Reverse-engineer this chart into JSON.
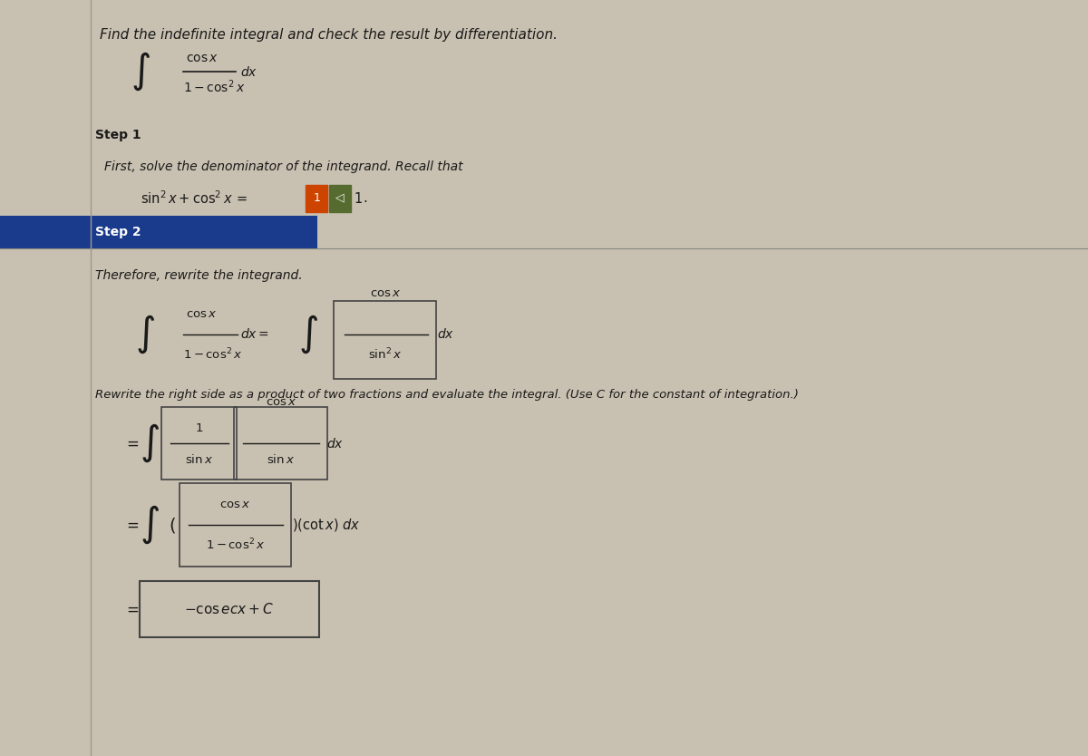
{
  "bg_color": "#c8c0b0",
  "panel_color": "#d4cdc0",
  "text_color": "#1a1a1a",
  "step2_bar_color": "#1a3a8c",
  "step2_text_color": "#ffffff",
  "title": "Find the indefinite integral and check the result by differentiation.",
  "title_fontsize": 11,
  "step1_label": "Step 1",
  "step1_text": "First, solve the denominator of the integrand. Recall that",
  "step2_label": "Step 2",
  "step2_text": "Therefore, rewrite the integrand.",
  "rewrite_text": "Rewrite the right side as a product of two fractions and evaluate the integral. (Use C for the constant of integration.)"
}
